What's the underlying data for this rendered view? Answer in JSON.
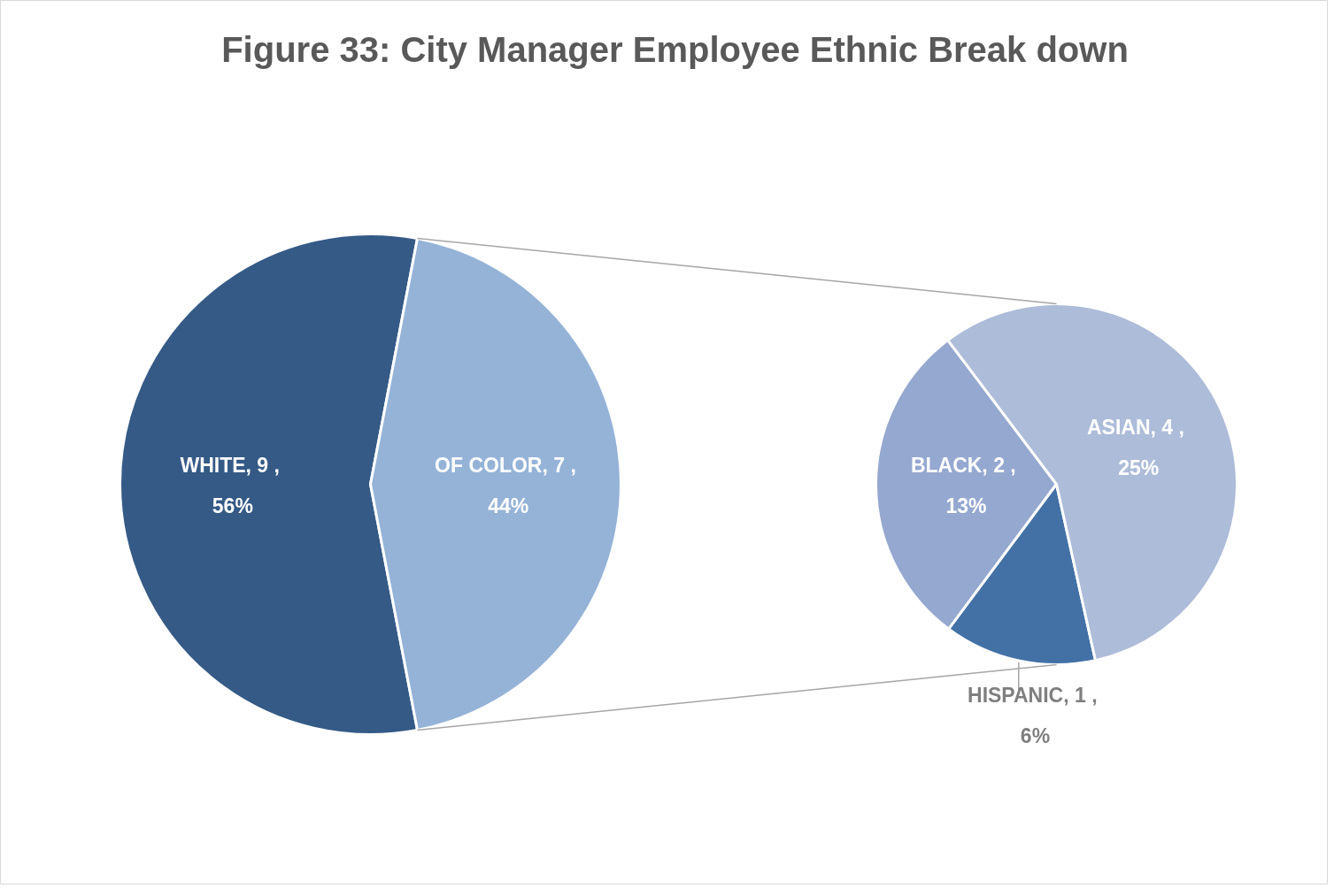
{
  "chart_data": [
    {
      "type": "pie",
      "title": "Figure 33: City Manager Employee Ethnic Break down",
      "categories": [
        "WHITE",
        "OF COLOR"
      ],
      "values": [
        56,
        44
      ],
      "value_labels": [
        "9 , 56%",
        "7 , 44%"
      ],
      "colors": [
        "#355a86",
        "#95b3d7"
      ]
    },
    {
      "type": "pie",
      "categories": [
        "BLACK",
        "HISPANIC",
        "ASIAN"
      ],
      "values": [
        13,
        6,
        25
      ],
      "value_labels": [
        "2 , 13%",
        "1 , 6%",
        "4 , 25%"
      ],
      "colors": [
        "#95a8cf",
        "#4371a5",
        "#adbcd8"
      ]
    }
  ]
}
